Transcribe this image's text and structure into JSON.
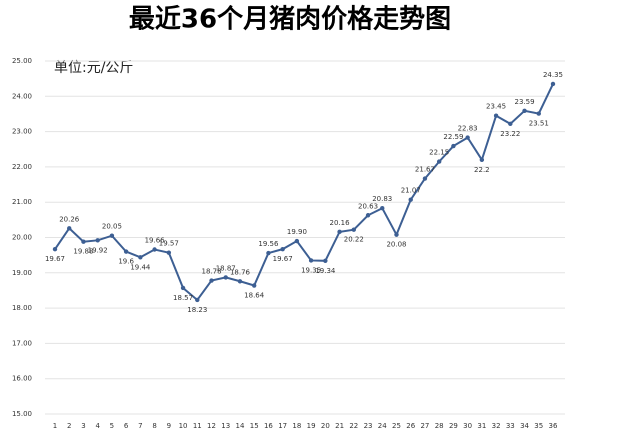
{
  "chart_data": {
    "type": "line",
    "title": "最近36个月猪肉价格走势图",
    "unit_label": "单位:元/公斤",
    "categories": [
      "1",
      "2",
      "3",
      "4",
      "5",
      "6",
      "7",
      "8",
      "9",
      "10",
      "11",
      "12",
      "13",
      "14",
      "15",
      "16",
      "17",
      "18",
      "19",
      "20",
      "21",
      "22",
      "23",
      "24",
      "25",
      "26",
      "27",
      "28",
      "29",
      "30",
      "31",
      "32",
      "33",
      "34",
      "35",
      "36"
    ],
    "series": [
      {
        "name": "猪肉价格",
        "color": "#3d5f93",
        "values": [
          19.67,
          20.26,
          19.88,
          19.92,
          20.05,
          19.6,
          19.44,
          19.66,
          19.57,
          18.57,
          18.23,
          18.78,
          18.87,
          18.76,
          18.64,
          19.56,
          19.67,
          19.9,
          19.35,
          19.34,
          20.16,
          20.22,
          20.63,
          20.83,
          20.08,
          21.07,
          21.67,
          22.15,
          22.59,
          22.83,
          22.2,
          23.45,
          23.22,
          23.59,
          23.51,
          24.35
        ],
        "value_labels": [
          "19.67",
          "20.26",
          "19.88",
          "19.92",
          "20.05",
          "19.6",
          "19.44",
          "19.66",
          "19.57",
          "18.57",
          "18.23",
          "18.78",
          "18.87",
          "18.76",
          "18.64",
          "19.56",
          "19.67",
          "19.90",
          "19.35",
          "19.34",
          "20.16",
          "20.22",
          "20.63",
          "20.83",
          "20.08",
          "21.07",
          "21.67",
          "22.15",
          "22.59",
          "22.83",
          "22.2",
          "23.45",
          "23.22",
          "23.59",
          "23.51",
          "24.35"
        ]
      }
    ],
    "ylim": [
      15,
      25
    ],
    "yticks": [
      {
        "value": 15,
        "label": "15.00"
      },
      {
        "value": 16,
        "label": "16.00"
      },
      {
        "value": 17,
        "label": "17.00"
      },
      {
        "value": 18,
        "label": "18.00"
      },
      {
        "value": 19,
        "label": "19.00"
      },
      {
        "value": 20,
        "label": "20.00"
      },
      {
        "value": 21,
        "label": "21.00"
      },
      {
        "value": 22,
        "label": "22.00"
      },
      {
        "value": 23,
        "label": "23.00"
      },
      {
        "value": 24,
        "label": "24.00"
      },
      {
        "value": 25,
        "label": "25.00"
      }
    ],
    "grid": true
  }
}
